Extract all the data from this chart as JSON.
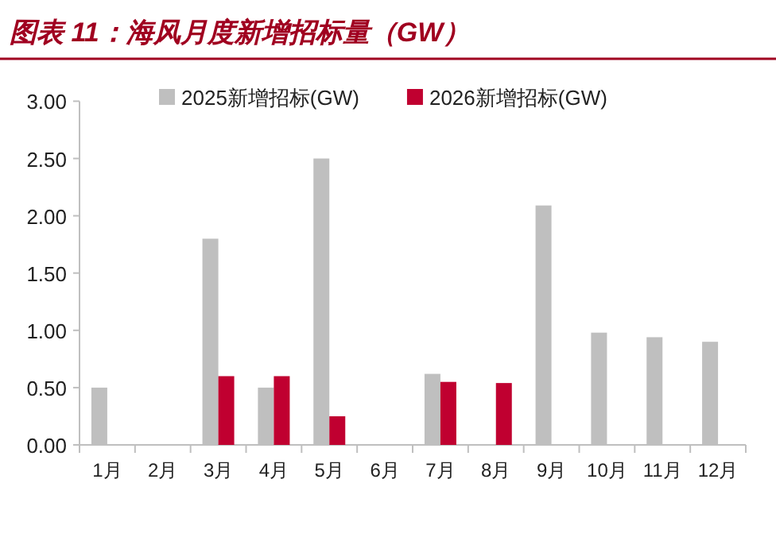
{
  "chart_data": {
    "type": "bar",
    "title": "图表 11：海风月度新增招标量（GW）",
    "categories": [
      "1月",
      "2月",
      "3月",
      "4月",
      "5月",
      "6月",
      "7月",
      "8月",
      "9月",
      "10月",
      "11月",
      "12月"
    ],
    "series": [
      {
        "name": "2025新增招标(GW)",
        "color": "#bfbfbf",
        "values": [
          0.5,
          null,
          1.8,
          0.5,
          2.5,
          null,
          0.62,
          null,
          2.09,
          0.98,
          0.94,
          0.9
        ]
      },
      {
        "name": "2026新增招标(GW)",
        "color": "#c00030",
        "values": [
          null,
          null,
          0.6,
          0.6,
          0.25,
          null,
          0.55,
          0.54,
          null,
          null,
          null,
          null
        ]
      }
    ],
    "ylim": [
      0,
      3
    ],
    "yticks": [
      {
        "value": 0,
        "label": "0.00"
      },
      {
        "value": 0.5,
        "label": "0.50"
      },
      {
        "value": 1,
        "label": "1.00"
      },
      {
        "value": 1.5,
        "label": "1.50"
      },
      {
        "value": 2,
        "label": "2.00"
      },
      {
        "value": 2.5,
        "label": "2.50"
      },
      {
        "value": 3,
        "label": "3.00"
      }
    ],
    "legend": "top",
    "grid": false
  }
}
